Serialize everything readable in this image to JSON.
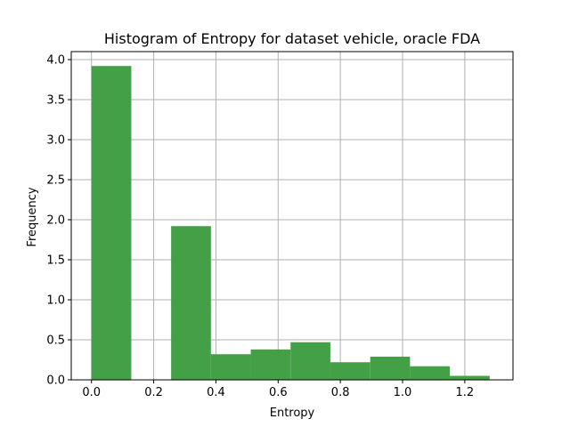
{
  "chart_data": {
    "type": "bar",
    "title": "Histogram of Entropy for dataset vehicle, oracle FDA",
    "xlabel": "Entropy",
    "ylabel": "Frequency",
    "xlim": [
      -0.065,
      1.355
    ],
    "ylim": [
      0,
      4.1
    ],
    "xticks": [
      0.0,
      0.2,
      0.4,
      0.6,
      0.8,
      1.0,
      1.2
    ],
    "xtick_labels": [
      "0.0",
      "0.2",
      "0.4",
      "0.6",
      "0.8",
      "1.0",
      "1.2"
    ],
    "yticks": [
      0.0,
      0.5,
      1.0,
      1.5,
      2.0,
      2.5,
      3.0,
      3.5,
      4.0
    ],
    "ytick_labels": [
      "0.0",
      "0.5",
      "1.0",
      "1.5",
      "2.0",
      "2.5",
      "3.0",
      "3.5",
      "4.0"
    ],
    "grid": true,
    "bar_color": "#43a047",
    "bins": [
      {
        "x0": 0.0,
        "x1": 0.128,
        "value": 3.92
      },
      {
        "x0": 0.128,
        "x1": 0.256,
        "value": 0.0
      },
      {
        "x0": 0.256,
        "x1": 0.384,
        "value": 1.92
      },
      {
        "x0": 0.384,
        "x1": 0.512,
        "value": 0.32
      },
      {
        "x0": 0.512,
        "x1": 0.64,
        "value": 0.38
      },
      {
        "x0": 0.64,
        "x1": 0.768,
        "value": 0.47
      },
      {
        "x0": 0.768,
        "x1": 0.896,
        "value": 0.22
      },
      {
        "x0": 0.896,
        "x1": 1.024,
        "value": 0.29
      },
      {
        "x0": 1.024,
        "x1": 1.152,
        "value": 0.17
      },
      {
        "x0": 1.152,
        "x1": 1.28,
        "value": 0.05
      }
    ]
  }
}
